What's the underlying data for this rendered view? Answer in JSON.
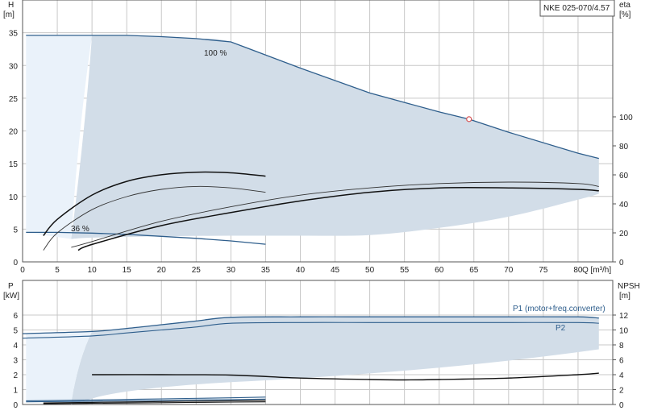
{
  "chart_data": [
    {
      "type": "line",
      "title": "NKE 025-070/4.57",
      "xlabel": "Q [m³/h]",
      "ylabel_left": [
        "H",
        "[m]"
      ],
      "ylabel_right": [
        "eta",
        "[%]"
      ],
      "xlim": [
        0,
        85
      ],
      "ylim_left": [
        0,
        40
      ],
      "ylim_right": [
        0,
        100
      ],
      "x_ticks": [
        "0",
        "5",
        "10",
        "15",
        "20",
        "25",
        "30",
        "35",
        "40",
        "45",
        "50",
        "55",
        "60",
        "65",
        "70",
        "75",
        "80"
      ],
      "y_ticks_left": [
        "0",
        "5",
        "10",
        "15",
        "20",
        "25",
        "30",
        "35"
      ],
      "y_ticks_right": [
        "0",
        "20",
        "40",
        "60",
        "80",
        "100"
      ],
      "grid": true,
      "annotations": [
        {
          "text": "100 %",
          "x": 29.5,
          "y": 36.8
        },
        {
          "text": "36 %",
          "x": 7.2,
          "y": 5.3
        }
      ],
      "operating_point": {
        "x": 64.3,
        "y": 21.8
      },
      "series": [
        {
          "role": "npsh_shade_region",
          "x": [
            0.5,
            10,
            20,
            30,
            40,
            50,
            60,
            70,
            80,
            83
          ],
          "y": [
            4.5,
            34.7,
            34.3,
            33.7,
            29.5,
            25.8,
            22.2,
            18.8,
            15.6,
            15.4
          ]
        },
        {
          "role": "envelope_100pct",
          "x": [
            0.5,
            10,
            15,
            20,
            25,
            30,
            40,
            50,
            60,
            64.3,
            70,
            80,
            83
          ],
          "y": [
            34.6,
            34.6,
            34.6,
            34.4,
            34.1,
            33.6,
            29.6,
            25.8,
            22.9,
            21.8,
            19.8,
            16.6,
            15.8
          ]
        },
        {
          "role": "envelope_min",
          "x": [
            0.5,
            5,
            10,
            15,
            20,
            25,
            30,
            35
          ],
          "y": [
            4.5,
            4.5,
            4.4,
            4.2,
            3.9,
            3.6,
            3.2,
            2.7
          ]
        },
        {
          "role": "lower_boundary",
          "x": [
            7,
            10,
            20,
            30,
            40,
            50,
            60,
            70,
            80,
            83
          ],
          "y": [
            3.5,
            3.7,
            3.9,
            4.0,
            4.0,
            4.1,
            5.2,
            6.9,
            9.5,
            10.4
          ]
        },
        {
          "role": "H_curve_36pct",
          "x": [
            3,
            5,
            10,
            15,
            20,
            25,
            30,
            35
          ],
          "y": [
            4.0,
            6.5,
            10.2,
            12.3,
            13.3,
            13.7,
            13.6,
            13.1
          ]
        },
        {
          "role": "eta_curve_36pct",
          "axis": "right",
          "x": [
            3,
            5,
            10,
            15,
            20,
            25,
            30,
            35
          ],
          "y": [
            8,
            20,
            36,
            45,
            50,
            52,
            51,
            48
          ]
        },
        {
          "role": "eta_curve_100pct",
          "axis": "right",
          "x": [
            7,
            10,
            20,
            30,
            40,
            50,
            60,
            70,
            80,
            83
          ],
          "y": [
            10,
            14,
            28,
            38,
            46,
            51,
            54,
            55,
            54,
            52
          ]
        },
        {
          "role": "H_curve_100pct_alt",
          "axis": "right",
          "x": [
            8,
            10,
            20,
            30,
            40,
            50,
            60,
            70,
            80,
            83
          ],
          "y": [
            8,
            12,
            25,
            34,
            42,
            48,
            51,
            51,
            50,
            49
          ]
        }
      ]
    },
    {
      "type": "line",
      "xlabel": "",
      "ylabel_left": [
        "P",
        "[kW]"
      ],
      "ylabel_right": [
        "NPSH",
        "[m]"
      ],
      "xlim": [
        0,
        85
      ],
      "ylim_left": [
        0,
        7
      ],
      "ylim_right": [
        0,
        14
      ],
      "y_ticks_left": [
        "0",
        "1",
        "2",
        "3",
        "4",
        "5",
        "6"
      ],
      "y_ticks_right": [
        "0",
        "2",
        "4",
        "6",
        "8",
        "10",
        "12"
      ],
      "grid": true,
      "series": [
        {
          "name": "P1 (motor+freq.converter)",
          "x": [
            0,
            10,
            15,
            20,
            25,
            30,
            40,
            50,
            60,
            70,
            80,
            83
          ],
          "y": [
            4.75,
            4.9,
            5.1,
            5.35,
            5.6,
            5.85,
            5.88,
            5.88,
            5.88,
            5.88,
            5.88,
            5.8
          ]
        },
        {
          "name": "P2",
          "x": [
            0,
            10,
            15,
            20,
            25,
            30,
            40,
            50,
            60,
            70,
            80,
            83
          ],
          "y": [
            4.45,
            4.6,
            4.8,
            5.0,
            5.2,
            5.45,
            5.5,
            5.5,
            5.5,
            5.5,
            5.5,
            5.45
          ]
        },
        {
          "role": "NPSH",
          "axis": "right",
          "x": [
            10,
            20,
            30,
            40,
            50,
            55,
            60,
            70,
            80,
            83
          ],
          "y": [
            4.0,
            4.0,
            3.95,
            3.55,
            3.35,
            3.3,
            3.35,
            3.55,
            4.0,
            4.2
          ]
        },
        {
          "role": "low_power_1",
          "x": [
            0.5,
            10,
            20,
            30,
            35
          ],
          "y": [
            0.25,
            0.3,
            0.38,
            0.45,
            0.5
          ]
        },
        {
          "role": "low_power_2",
          "x": [
            0.5,
            10,
            20,
            30,
            35
          ],
          "y": [
            0.18,
            0.22,
            0.28,
            0.33,
            0.36
          ]
        },
        {
          "role": "low_power_3",
          "x": [
            3,
            10,
            20,
            30,
            35
          ],
          "y": [
            0.1,
            0.14,
            0.2,
            0.25,
            0.28
          ]
        },
        {
          "role": "low_power_4",
          "x": [
            3,
            10,
            20,
            30,
            35
          ],
          "y": [
            0.05,
            0.08,
            0.12,
            0.16,
            0.18
          ]
        }
      ]
    }
  ],
  "colors": {
    "shade": "#d2dde8",
    "shade_light": "#eaf2fa",
    "envelope": "#2e5e8c",
    "curve": "#111111",
    "grid": "#c8c8c8",
    "operating_point": "#d85555"
  }
}
